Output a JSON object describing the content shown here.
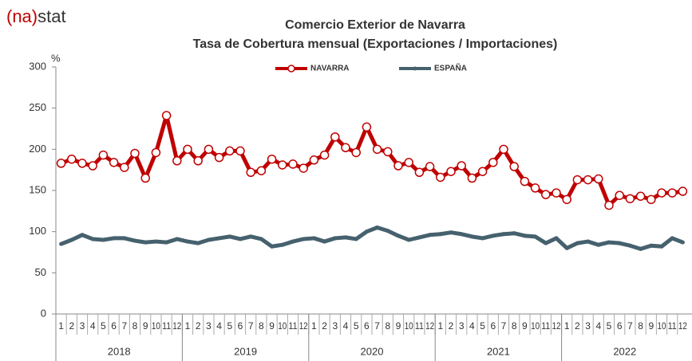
{
  "logo": {
    "left": "(na)",
    "right": "stat"
  },
  "chart_data": {
    "type": "line",
    "title": "Comercio Exterior de Navarra",
    "subtitle": "Tasa de Cobertura mensual  (Exportaciones / Importaciones)",
    "y_label": "%",
    "categories": [
      "1",
      "2",
      "3",
      "4",
      "5",
      "6",
      "7",
      "8",
      "9",
      "10",
      "11",
      "12",
      "1",
      "2",
      "3",
      "4",
      "5",
      "6",
      "7",
      "8",
      "9",
      "10",
      "11",
      "12",
      "1",
      "2",
      "3",
      "4",
      "5",
      "6",
      "7",
      "8",
      "9",
      "10",
      "11",
      "12",
      "1",
      "2",
      "3",
      "4",
      "5",
      "6",
      "7",
      "8",
      "9",
      "10",
      "11",
      "12",
      "1",
      "2",
      "3",
      "4",
      "5",
      "6",
      "7",
      "8",
      "9",
      "10",
      "11",
      "12"
    ],
    "years": [
      "2018",
      "2019",
      "2020",
      "2021",
      "2022"
    ],
    "series": [
      {
        "name": "NAVARRA",
        "color": "#c00000",
        "values": [
          183,
          188,
          183,
          180,
          193,
          184,
          178,
          195,
          165,
          196,
          241,
          186,
          200,
          186,
          200,
          190,
          198,
          198,
          172,
          174,
          188,
          181,
          182,
          177,
          187,
          193,
          215,
          202,
          196,
          227,
          200,
          197,
          180,
          184,
          172,
          179,
          166,
          173,
          180,
          165,
          173,
          184,
          200,
          179,
          161,
          153,
          145,
          147,
          139,
          163,
          163,
          164,
          132,
          144,
          140,
          143,
          139,
          147,
          147,
          149
        ]
      },
      {
        "name": "ESPAÑA",
        "color": "#46616e",
        "values": [
          85,
          90,
          96,
          91,
          90,
          92,
          92,
          89,
          87,
          88,
          87,
          91,
          88,
          86,
          90,
          92,
          94,
          91,
          94,
          91,
          82,
          84,
          88,
          91,
          92,
          88,
          92,
          93,
          91,
          100,
          105,
          101,
          95,
          90,
          93,
          96,
          97,
          99,
          97,
          94,
          92,
          95,
          97,
          98,
          95,
          94,
          86,
          92,
          80,
          86,
          88,
          84,
          87,
          86,
          83,
          79,
          83,
          82,
          92,
          87
        ]
      }
    ],
    "ylim": [
      0,
      300
    ],
    "yticks": [
      0,
      50,
      100,
      150,
      200,
      250,
      300
    ]
  }
}
